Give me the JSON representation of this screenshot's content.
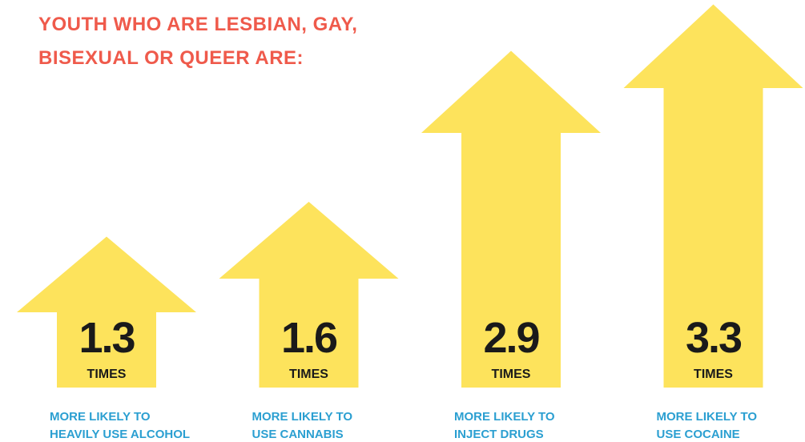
{
  "chart_data": {
    "type": "arrow",
    "title": "YOUTH WHO ARE LESBIAN, GAY, BISEXUAL OR QUEER ARE:",
    "categories": [
      [
        "MORE LIKELY TO",
        "HEAVILY USE ALCOHOL"
      ],
      [
        "MORE LIKELY TO",
        "USE CANNABIS"
      ],
      [
        "MORE LIKELY TO",
        "INJECT DRUGS"
      ],
      [
        "MORE LIKELY TO",
        "USE COCAINE"
      ]
    ],
    "values": [
      1.3,
      1.6,
      2.9,
      3.3
    ],
    "unit": "TIMES",
    "color": "#fde35c",
    "title_color": "#ef5a4b",
    "label_color": "#2b9fd1"
  }
}
